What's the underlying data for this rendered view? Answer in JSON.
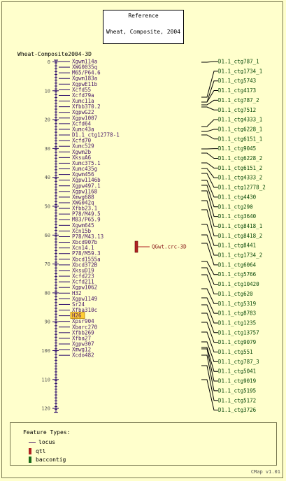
{
  "reference": {
    "label": "Reference",
    "map_set": "Wheat, Composite, 2004"
  },
  "map_title": "Wheat-Composite2004-3D",
  "axis_ticks": [
    "0",
    "10",
    "20",
    "30",
    "40",
    "50",
    "60",
    "70",
    "80",
    "90",
    "100",
    "110",
    "120"
  ],
  "markers": [
    "Xgwm114a",
    "XWG0035q",
    "M65/P64.6",
    "Xgwm183a",
    "XgpwE11b",
    "Xcfd55",
    "Xcfd79a",
    "Xumc11a",
    "Xfbb370.2",
    "XgpwG22",
    "Xgpw1007",
    "Xcfd64",
    "Xumc43a",
    "D1.1_ctg12778-1",
    "Xcfd70",
    "Xumc529",
    "Xgwm2b",
    "XksuA6",
    "Xumc375.1",
    "Xumc435g",
    "Xgwm456",
    "Xgpw1146b",
    "Xgpw497.1",
    "Xgpw1168",
    "Xmwg688",
    "XWG042q",
    "Xfbb23.1",
    "P78/M49.5",
    "M83/P65.9",
    "Xgwm645",
    "Xcn15b",
    "P78/M43.13",
    "Xbcd907b",
    "Xcn14.1",
    "P78/M59.3",
    "Xbcd1555a",
    "Xbcd372B",
    "XksuD19",
    "Xcfd223",
    "Xcfd211",
    "Xgpw1062",
    "H32",
    "Xgpw1149",
    "Sr24",
    "Xfba310c",
    "H26",
    "Xpsr904",
    "Xbarc270",
    "Xfbb269",
    "Xfba27",
    "Xgpw307",
    "Xmwg12",
    "Xcdo482"
  ],
  "highlighted_marker": "H26",
  "qtl": {
    "label": "QGwt.crc-3D"
  },
  "contigs": [
    "D1.1_ctg787_1",
    "D1.1_ctg1734_1",
    "D1.1_ctg5743",
    "D1.1_ctg4173",
    "D1.1_ctg787_2",
    "D1.1_ctg7512",
    "D1.1_ctg4333_1",
    "D1.1_ctg6228_1",
    "D1.1_ctg6151_1",
    "D1.1_ctg9045",
    "D1.1_ctg6228_2",
    "D1.1_ctg6151_2",
    "D1.1_ctg4333_2",
    "D1.1_ctg12778_2",
    "D1.1_ctg4430",
    "D1.1_ctg290",
    "D1.1_ctg3640",
    "D1.1_ctg8418_1",
    "D1.1_ctg8418_2",
    "D1.1_ctg8441",
    "D1.1_ctg1734_2",
    "D1.1_ctg6064",
    "D1.1_ctg5766",
    "D1.1_ctg10420",
    "D1.1_ctg620",
    "D1.1_ctg5319",
    "D1.1_ctg8783",
    "D1.1_ctg1235",
    "D1.1_ctg13757",
    "D1.1_ctg9079",
    "D1.1_ctg551",
    "D1.1_ctg787_3",
    "D1.1_ctg5041",
    "D1.1_ctg9019",
    "D1.1_ctg5195",
    "D1.1_ctg5172",
    "D1.1_ctg3726"
  ],
  "legend": {
    "heading": "Feature Types:",
    "items": [
      {
        "label": "locus",
        "color": "#4a1a6a"
      },
      {
        "label": "qtl",
        "color": "#b22222"
      },
      {
        "label": "baccontig",
        "color": "#1a6a1a"
      }
    ]
  },
  "version": "CMap v1.01",
  "colors": {
    "background": "#ffffcc",
    "marker_text": "#4a1a6a",
    "contig_text": "#0a4a0a",
    "qtl": "#b22222",
    "highlight": "#ffcc33"
  }
}
